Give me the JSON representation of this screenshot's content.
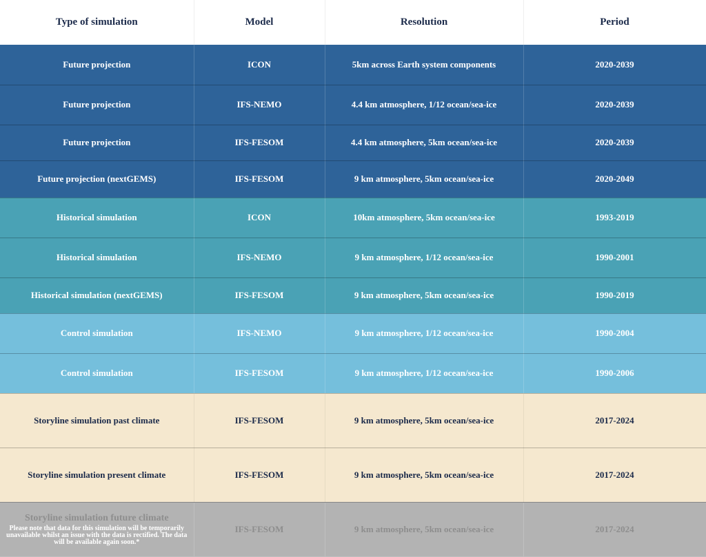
{
  "table": {
    "header": [
      "Type of simulation",
      "Model",
      "Resolution",
      "Period"
    ],
    "rows": [
      [
        "Future projection",
        "ICON",
        "5km across Earth system components",
        "2020-2039"
      ],
      [
        "Future projection",
        "IFS-NEMO",
        "4.4 km atmosphere, 1/12 ocean/sea-ice",
        "2020-2039"
      ],
      [
        "Future projection",
        "IFS-FESOM",
        "4.4 km atmosphere, 5km ocean/sea-ice",
        "2020-2039"
      ],
      [
        "Future projection (nextGEMS)",
        "IFS-FESOM",
        "9 km atmosphere, 5km ocean/sea-ice",
        "2020-2049"
      ],
      [
        "Historical simulation",
        "ICON",
        "10km atmosphere, 5km ocean/sea-ice",
        "1993-2019"
      ],
      [
        "Historical simulation",
        "IFS-NEMO",
        "9 km atmosphere, 1/12 ocean/sea-ice",
        "1990-2001"
      ],
      [
        "Historical simulation (nextGEMS)",
        "IFS-FESOM",
        "9 km atmosphere, 5km ocean/sea-ice",
        "1990-2019"
      ],
      [
        "Control simulation",
        "IFS-NEMO",
        "9 km atmosphere, 1/12 ocean/sea-ice",
        "1990-2004"
      ],
      [
        "Control simulation",
        "IFS-FESOM",
        "9 km atmosphere, 1/12 ocean/sea-ice",
        "1990-2006"
      ],
      [
        "Storyline simulation past climate",
        "IFS-FESOM",
        "9 km atmosphere, 5km ocean/sea-ice",
        "2017-2024"
      ],
      [
        "Storyline simulation present climate",
        "IFS-FESOM",
        "9 km atmosphere, 5km ocean/sea-ice",
        "2017-2024"
      ],
      [
        "Storyline simulation future climate",
        "IFS-FESOM",
        "9 km atmosphere, 5km ocean/sea-ice",
        "2017-2024"
      ]
    ],
    "note": "Please note that data for this simulation will be temporarily unavailable whilst an issue with the data is rectified. The data will be available again soon.*"
  }
}
